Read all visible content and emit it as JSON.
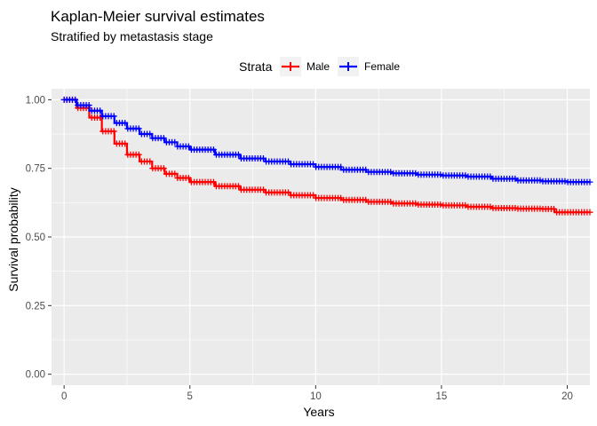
{
  "chart_data": {
    "type": "line",
    "step": true,
    "title": "Kaplan-Meier survival estimates",
    "subtitle": "Stratified by metastasis stage",
    "xlabel": "Years",
    "ylabel": "Survival probability",
    "xlim": [
      -0.5,
      20.9
    ],
    "ylim": [
      -0.04,
      1.04
    ],
    "x_ticks": [
      0,
      5,
      10,
      15,
      20
    ],
    "y_ticks": [
      0,
      0.25,
      0.5,
      0.75,
      1
    ],
    "x_tick_labels": [
      "0",
      "5",
      "10",
      "15",
      "20"
    ],
    "y_tick_labels": [
      "0.00",
      "0.25",
      "0.50",
      "0.75",
      "1.00"
    ],
    "grid": true,
    "legend": {
      "title": "Strata",
      "placement": "top"
    },
    "censor_marks": true,
    "series": [
      {
        "name": "Male",
        "color": "#ff0000",
        "x": [
          0,
          0.5,
          1,
          1.5,
          2,
          2.5,
          3,
          3.5,
          4,
          4.5,
          5,
          6,
          7,
          8,
          9,
          10,
          11,
          12,
          13,
          14,
          15,
          16,
          17,
          18,
          19,
          19.5,
          20,
          20.9
        ],
        "y": [
          1.0,
          0.97,
          0.935,
          0.885,
          0.84,
          0.8,
          0.775,
          0.75,
          0.73,
          0.715,
          0.7,
          0.685,
          0.672,
          0.662,
          0.652,
          0.642,
          0.635,
          0.628,
          0.622,
          0.618,
          0.615,
          0.61,
          0.605,
          0.603,
          0.602,
          0.59,
          0.59,
          0.59
        ]
      },
      {
        "name": "Female",
        "color": "#0000ff",
        "x": [
          0,
          0.5,
          1,
          1.5,
          2,
          2.5,
          3,
          3.5,
          4,
          4.5,
          5,
          6,
          7,
          8,
          9,
          10,
          11,
          12,
          13,
          14,
          15,
          16,
          17,
          18,
          19,
          20,
          20.9
        ],
        "y": [
          1.0,
          0.98,
          0.96,
          0.94,
          0.915,
          0.895,
          0.875,
          0.86,
          0.845,
          0.83,
          0.818,
          0.8,
          0.786,
          0.775,
          0.765,
          0.755,
          0.745,
          0.737,
          0.732,
          0.727,
          0.724,
          0.72,
          0.712,
          0.706,
          0.703,
          0.7,
          0.7
        ]
      }
    ]
  }
}
